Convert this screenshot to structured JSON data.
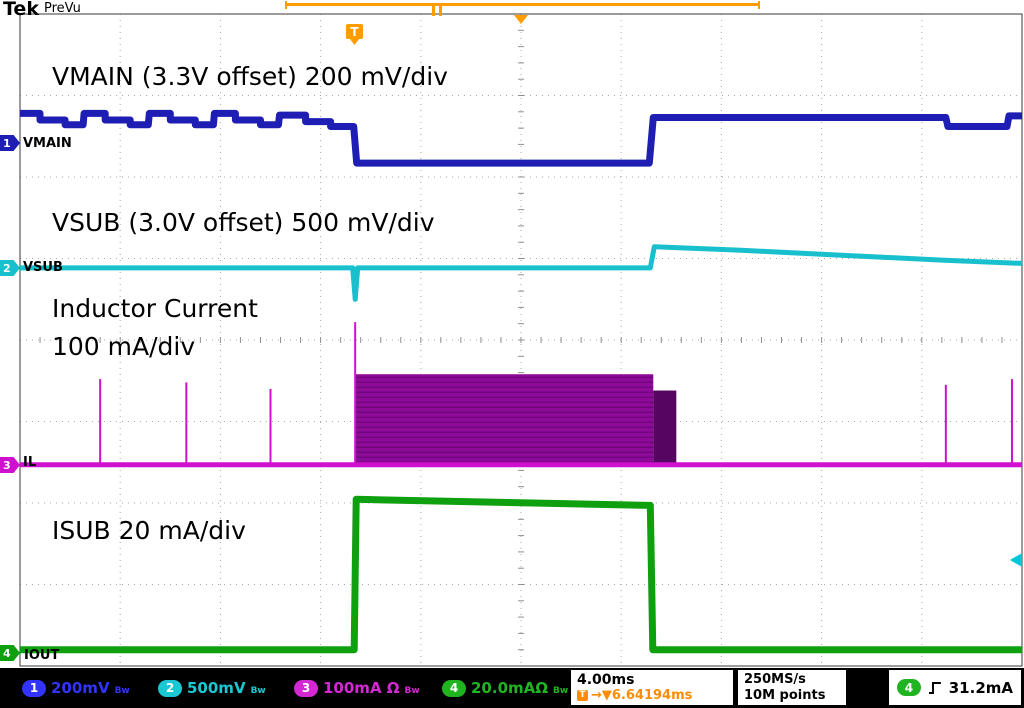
{
  "scope": {
    "brand": "Tek",
    "mode": "PreVu",
    "annotations": [
      "VMAIN (3.3V offset) 200 mV/div",
      "VSUB (3.0V offset) 500 mV/div",
      "Inductor Current",
      "100 mA/div",
      "ISUB 20 mA/div"
    ]
  },
  "chart_data": {
    "type": "line",
    "title": "Tek PreVu oscilloscope capture",
    "x_axis": {
      "timebase_per_div": "4.00ms",
      "divisions": 10,
      "total_window": "40ms"
    },
    "y_divisions": 8,
    "grid": true,
    "trigger": {
      "source_channel": 4,
      "slope": "rising",
      "level": "31.2mA",
      "position_readout": "6.64194ms"
    },
    "series": [
      {
        "channel": 1,
        "name": "VMAIN",
        "scale": "200 mV/div",
        "offset": "3.3V offset",
        "color": "#1e1eb4",
        "thickness": 7,
        "points": [
          [
            0,
            1.22
          ],
          [
            0.2,
            1.22
          ],
          [
            0.2,
            1.3
          ],
          [
            0.45,
            1.3
          ],
          [
            0.45,
            1.36
          ],
          [
            0.63,
            1.36
          ],
          [
            0.64,
            1.22
          ],
          [
            0.85,
            1.22
          ],
          [
            0.85,
            1.3
          ],
          [
            1.1,
            1.3
          ],
          [
            1.1,
            1.36
          ],
          [
            1.28,
            1.36
          ],
          [
            1.29,
            1.22
          ],
          [
            1.5,
            1.22
          ],
          [
            1.5,
            1.3
          ],
          [
            1.75,
            1.3
          ],
          [
            1.75,
            1.36
          ],
          [
            1.93,
            1.36
          ],
          [
            1.94,
            1.22
          ],
          [
            2.15,
            1.22
          ],
          [
            2.15,
            1.3
          ],
          [
            2.4,
            1.3
          ],
          [
            2.4,
            1.36
          ],
          [
            2.58,
            1.36
          ],
          [
            2.59,
            1.24
          ],
          [
            2.85,
            1.24
          ],
          [
            2.85,
            1.32
          ],
          [
            3.1,
            1.32
          ],
          [
            3.1,
            1.38
          ],
          [
            3.33,
            1.38
          ],
          [
            3.36,
            1.83
          ],
          [
            6.28,
            1.83
          ],
          [
            6.32,
            1.27
          ],
          [
            9.24,
            1.27
          ],
          [
            9.26,
            1.38
          ],
          [
            9.85,
            1.38
          ],
          [
            9.87,
            1.25
          ],
          [
            10,
            1.25
          ]
        ]
      },
      {
        "channel": 2,
        "name": "VSUB",
        "scale": "500 mV/div",
        "offset": "3.0V offset",
        "color": "#17c0cc",
        "thickness": 5,
        "points": [
          [
            0,
            3.115
          ],
          [
            3.32,
            3.115
          ],
          [
            3.345,
            3.5
          ],
          [
            3.37,
            3.115
          ],
          [
            6.29,
            3.115
          ],
          [
            6.33,
            2.855
          ],
          [
            7.2,
            2.9
          ],
          [
            8.2,
            2.96
          ],
          [
            9.2,
            3.02
          ],
          [
            10,
            3.06
          ]
        ]
      },
      {
        "channel": 3,
        "name": "IL",
        "scale": "100 mA/div",
        "color": "#cf10cf",
        "thickness": 5,
        "points": [
          [
            0,
            5.53
          ],
          [
            10,
            5.53
          ]
        ],
        "spikes": [
          {
            "x": 0.8,
            "y0": 5.53,
            "y1": 4.48,
            "w": 2
          },
          {
            "x": 1.66,
            "y0": 5.53,
            "y1": 4.52,
            "w": 2
          },
          {
            "x": 2.5,
            "y0": 5.53,
            "y1": 4.6,
            "w": 2
          },
          {
            "x": 3.345,
            "y0": 5.53,
            "y1": 3.78,
            "w": 2
          },
          {
            "x": 9.24,
            "y0": 5.53,
            "y1": 4.55,
            "w": 2
          },
          {
            "x": 9.9,
            "y0": 5.53,
            "y1": 4.48,
            "w": 2
          }
        ],
        "bursts": [
          {
            "x0": 3.35,
            "x1": 6.32,
            "y0": 4.42,
            "y1": 5.51,
            "fill": "#8e0a99",
            "stripes": true,
            "stripe_color": "#670472"
          },
          {
            "x0": 6.32,
            "x1": 6.55,
            "y0": 4.62,
            "y1": 5.51,
            "fill": "#560560",
            "stripes": false
          }
        ]
      },
      {
        "channel": 4,
        "name": "IOUT",
        "scale": "20 mA/div",
        "color": "#0fa00f",
        "thickness": 7,
        "points": [
          [
            0,
            7.8
          ],
          [
            3.335,
            7.8
          ],
          [
            3.355,
            5.955
          ],
          [
            6.29,
            6.03
          ],
          [
            6.315,
            7.8
          ],
          [
            10,
            7.8
          ]
        ]
      }
    ]
  },
  "markers": {
    "orange": "#ff9d00",
    "acq_bar": {
      "x0": 285,
      "x1": 760
    },
    "pause_x": 437,
    "center_x": 521,
    "tflag_x": 354,
    "tflag_label": "T",
    "right_arrow": {
      "y": 560,
      "color": "#00c8d0"
    }
  },
  "status_bar": {
    "channels": [
      {
        "ch": "1",
        "value": "200mV",
        "bw": "Bw",
        "color": "#3333ff"
      },
      {
        "ch": "2",
        "value": "500mV",
        "bw": "Bw",
        "color": "#1ac8d4"
      },
      {
        "ch": "3",
        "value": "100mA Ω",
        "bw": "Bw",
        "color": "#d428d4"
      },
      {
        "ch": "4",
        "value": "20.0mAΩ",
        "bw": "Bw",
        "color": "#21b421"
      }
    ],
    "timebase": "4.00ms",
    "trigger_flag": "T",
    "trigger_delay": "→▼6.64194ms",
    "sample_rate": "250MS/s",
    "record_length": "10M points",
    "trigger_readout": {
      "ch": "4",
      "level": "31.2mA"
    }
  }
}
